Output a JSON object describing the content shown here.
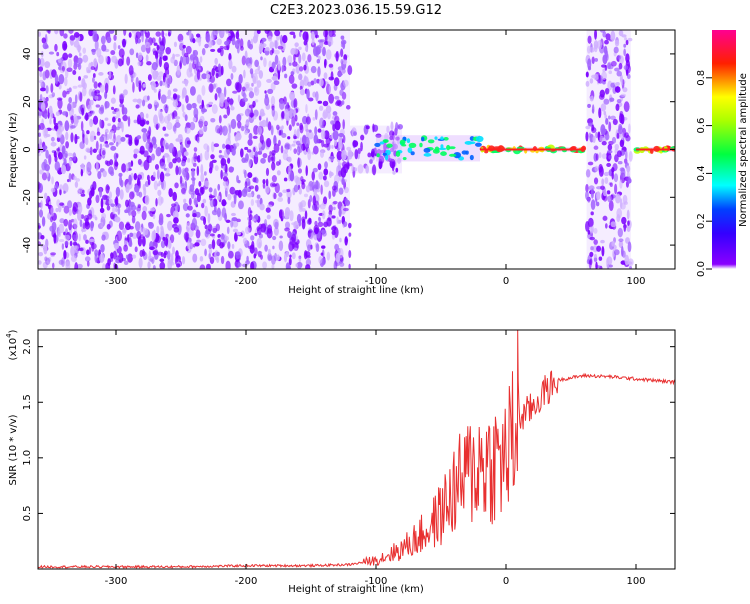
{
  "figure": {
    "title": "C2E3.2023.036.15.59.G12"
  },
  "chart_data": [
    {
      "type": "heatmap",
      "title": "",
      "xlabel": "Height of straight line (km)",
      "ylabel": "Frequency (Hz)",
      "xlim": [
        -360,
        130
      ],
      "ylim": [
        -50,
        50
      ],
      "xticks": [
        -300,
        -200,
        -100,
        0,
        100
      ],
      "yticks": [
        -40,
        -20,
        0,
        20,
        40
      ],
      "colorbar": {
        "label": "Normalized spectral amplitude",
        "range": [
          0,
          1
        ],
        "ticks": [
          0.0,
          0.2,
          0.4,
          0.6,
          0.8
        ],
        "colormap": [
          "#ffffff",
          "#7a00ff",
          "#0000ff",
          "#00ffff",
          "#00ff00",
          "#ffff00",
          "#ff0000",
          "#ff00ff"
        ]
      },
      "regions": [
        {
          "desc": "scattered noise, low amplitude",
          "x": [
            -360,
            -120
          ],
          "y": [
            -50,
            50
          ],
          "amplitude": 0.05
        },
        {
          "desc": "diffuse band",
          "x": [
            -120,
            -80
          ],
          "y": [
            -10,
            10
          ],
          "amplitude": 0.1
        },
        {
          "desc": "spectral line, medium amplitude",
          "x": [
            -100,
            -20
          ],
          "y": [
            -5,
            6
          ],
          "amplitude": 0.45
        },
        {
          "desc": "spectral line, high amplitude",
          "x": [
            -20,
            60
          ],
          "y": [
            -1,
            1
          ],
          "amplitude": 0.85
        },
        {
          "desc": "vertical noise strip",
          "x": [
            62,
            96
          ],
          "y": [
            -50,
            50
          ],
          "amplitude": 0.08
        },
        {
          "desc": "spectral line, high amplitude",
          "x": [
            100,
            130
          ],
          "y": [
            -1,
            1
          ],
          "amplitude": 0.85
        }
      ]
    },
    {
      "type": "line",
      "title": "",
      "xlabel": "Height of straight line (km)",
      "ylabel": "SNR (10 * v/v)",
      "y_multiplier": "(x10",
      "y_multiplier_exp": "4",
      "y_multiplier_close": ")",
      "xlim": [
        -360,
        130
      ],
      "ylim": [
        0,
        2.15
      ],
      "xticks": [
        -300,
        -200,
        -100,
        0,
        100
      ],
      "yticks": [
        0.5,
        1.0,
        1.5,
        2.0
      ],
      "series": [
        {
          "color": "#e83030",
          "x": [
            -360,
            -300,
            -250,
            -200,
            -150,
            -120,
            -100,
            -80,
            -60,
            -50,
            -40,
            -30,
            -20,
            -10,
            0,
            5,
            10,
            20,
            30,
            40,
            60,
            80,
            100,
            120,
            130
          ],
          "y": [
            0.02,
            0.02,
            0.02,
            0.03,
            0.03,
            0.04,
            0.08,
            0.18,
            0.35,
            0.5,
            0.7,
            0.85,
            0.95,
            0.95,
            1.0,
            1.15,
            1.35,
            1.45,
            1.6,
            1.7,
            1.74,
            1.73,
            1.71,
            1.69,
            1.68
          ]
        }
      ]
    }
  ]
}
